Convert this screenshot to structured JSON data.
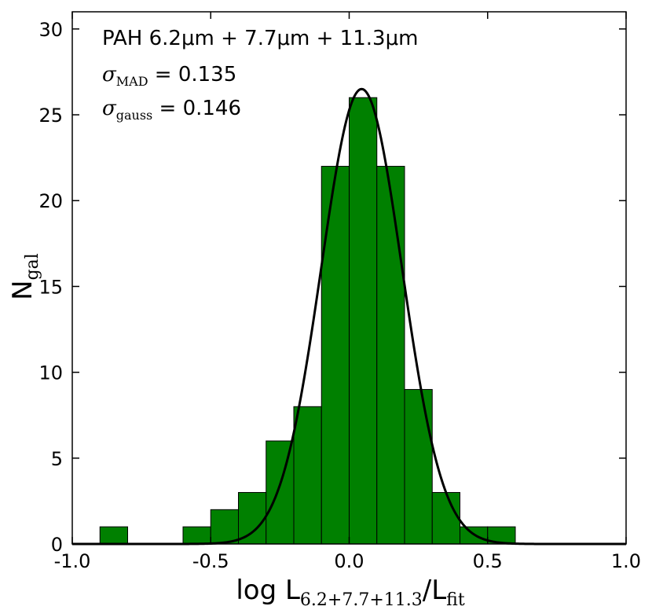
{
  "chart_data": {
    "type": "bar",
    "title": "",
    "xlabel": {
      "main": "log L",
      "sub": "6.2+7.7+11.3",
      "slash": "/L",
      "sub2": "fit"
    },
    "ylabel": {
      "main": "N",
      "sub": "gal"
    },
    "xlim": [
      -1.0,
      1.0
    ],
    "ylim": [
      0,
      31
    ],
    "xticks": [
      -1.0,
      -0.5,
      0.0,
      0.5,
      1.0
    ],
    "xtick_labels": [
      "-1.0",
      "-0.5",
      "0.0",
      "0.5",
      "1.0"
    ],
    "yticks": [
      0,
      5,
      10,
      15,
      20,
      25,
      30
    ],
    "ytick_labels": [
      "0",
      "5",
      "10",
      "15",
      "20",
      "25",
      "30"
    ],
    "bin_width": 0.1,
    "bins": [
      {
        "left": -0.9,
        "count": 1
      },
      {
        "left": -0.6,
        "count": 1
      },
      {
        "left": -0.5,
        "count": 2
      },
      {
        "left": -0.4,
        "count": 3
      },
      {
        "left": -0.3,
        "count": 6
      },
      {
        "left": -0.2,
        "count": 8
      },
      {
        "left": -0.1,
        "count": 22
      },
      {
        "left": 0.0,
        "count": 26
      },
      {
        "left": 0.1,
        "count": 22
      },
      {
        "left": 0.2,
        "count": 9
      },
      {
        "left": 0.3,
        "count": 3
      },
      {
        "left": 0.4,
        "count": 1
      },
      {
        "left": 0.5,
        "count": 1
      }
    ],
    "gauss_fit": {
      "amplitude": 26.5,
      "mean": 0.045,
      "sigma": 0.146
    },
    "bar_color": "#008000",
    "curve_color": "#000000",
    "annotations": {
      "title": "PAH 6.2μm + 7.7μm + 11.3μm",
      "line1": {
        "symbol": "σ",
        "sub": "MAD",
        "value": " = 0.135"
      },
      "line2": {
        "symbol": "σ",
        "sub": "gauss",
        "value": " = 0.146"
      }
    },
    "grid": false
  }
}
